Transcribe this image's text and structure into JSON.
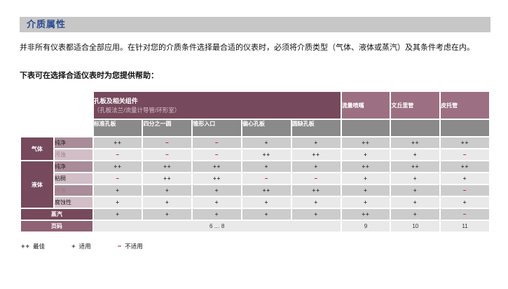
{
  "page": {
    "title": "介质属性",
    "intro": "并非所有仪表都适合全部应用。在针对您的介质条件选择最合适的仪表时，必须将介质类型（气体、液体或蒸汽）及其条件考虑在内。",
    "helper": "下表可在选择合适仪表时为您提供帮助："
  },
  "colors": {
    "accent_blue": "#2b4b8f",
    "header_dark_maroon": "#76495c",
    "header_mauve": "#9c7082",
    "subheader_gray": "#8a8a8a",
    "row_label_medium": "#a98b99",
    "row_label_light": "#d1bec7",
    "cell_dark": "#cccccc",
    "cell_light": "#e9e9e9",
    "minus_red": "#b11820"
  },
  "table": {
    "group_header": {
      "title": "孔板及相关组件",
      "subtitle": "（孔板法兰/流量计导管/环形室）"
    },
    "main_headers": [
      "流量喷嘴",
      "文丘里管",
      "皮托管"
    ],
    "sub_headers": [
      "标准孔板",
      "四分之一圆",
      "锥形入口",
      "偏心孔板",
      "圆缺孔板"
    ],
    "row_groups": [
      {
        "label": "气体",
        "rows": [
          {
            "label": "纯净",
            "muted": false,
            "values": [
              "++",
              "−",
              "−",
              "+",
              "+",
              "++",
              "++",
              "++"
            ]
          },
          {
            "label": "污浊",
            "muted": true,
            "values": [
              "−",
              "−",
              "−",
              "++",
              "++",
              "+",
              "+",
              "−"
            ]
          }
        ]
      },
      {
        "label": "液体",
        "rows": [
          {
            "label": "纯净",
            "muted": false,
            "values": [
              "++",
              "++",
              "++",
              "+",
              "+",
              "++",
              "++",
              "++"
            ]
          },
          {
            "label": "粘稠",
            "muted": false,
            "values": [
              "−",
              "++",
              "++",
              "−",
              "−",
              "+",
              "+",
              "+"
            ]
          },
          {
            "label": "污浊",
            "muted": true,
            "values": [
              "+",
              "+",
              "+",
              "++",
              "++",
              "+",
              "+",
              "−"
            ]
          },
          {
            "label": "腐蚀性",
            "muted": false,
            "values": [
              "+",
              "+",
              "+",
              "+",
              "+",
              "+",
              "+",
              "+"
            ]
          }
        ]
      }
    ],
    "steam_row": {
      "label": "蒸汽",
      "values": [
        "+",
        "+",
        "+",
        "+",
        "+",
        "++",
        "+",
        "−"
      ]
    },
    "page_row": {
      "label": "页码",
      "orifice_pages": "6 … 8",
      "pages": [
        "9",
        "10",
        "11"
      ]
    }
  },
  "legend": [
    {
      "symbol": "++",
      "label": "最佳",
      "negative": false
    },
    {
      "symbol": "+",
      "label": "适用",
      "negative": false
    },
    {
      "symbol": "−",
      "label": "不适用",
      "negative": true
    }
  ]
}
